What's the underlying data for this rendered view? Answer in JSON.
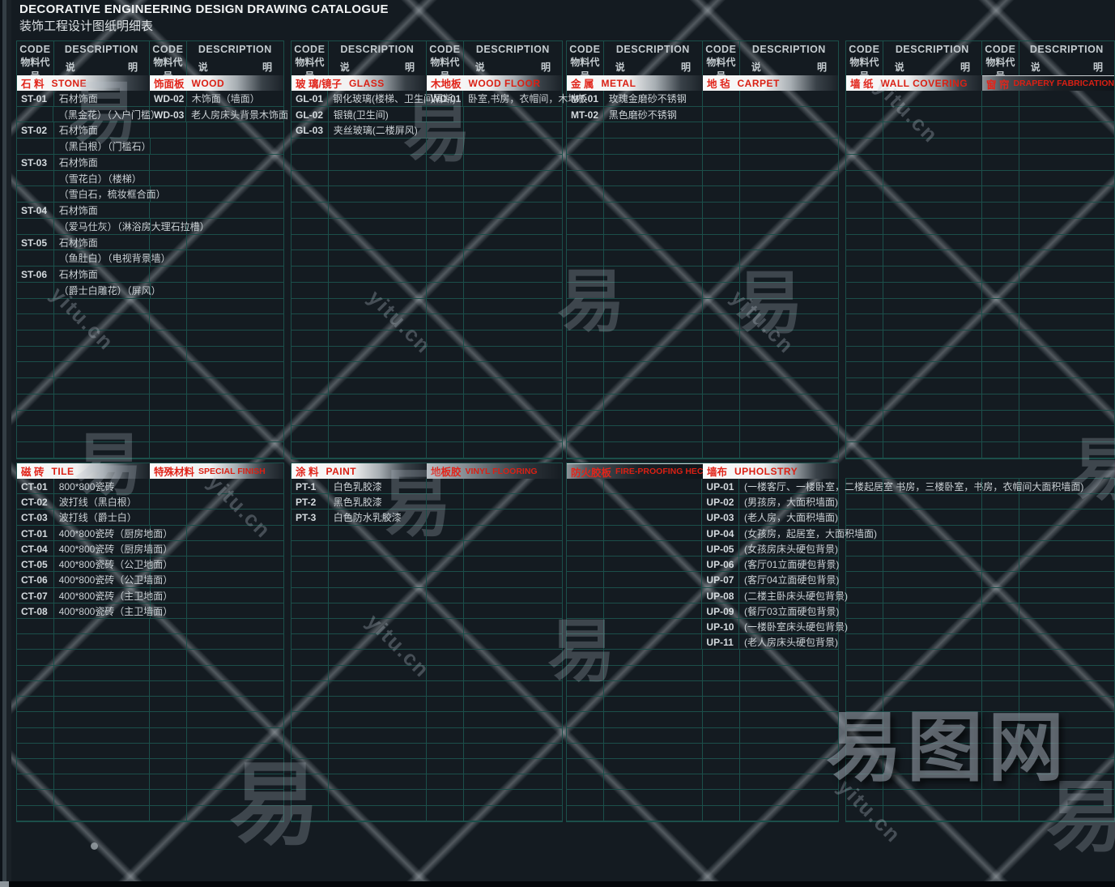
{
  "header": {
    "title_en": "DECORATIVE ENGINEERING DESIGN DRAWING CATALOGUE",
    "title_cn": "装饰工程设计图纸明细表"
  },
  "column_header": {
    "code_en": "CODE",
    "code_cn": "物料代号",
    "desc_en": "DESCRIPTION",
    "desc_cn_l": "说",
    "desc_cn_r": "明"
  },
  "watermark": {
    "glyph": "易",
    "url": "yitu.cn",
    "logo": "易图网",
    "dot": "·"
  },
  "sections": {
    "stone": {
      "cn": "石 料",
      "en": "STONE",
      "bar": "light",
      "rows": [
        [
          "ST-01",
          "石材饰面"
        ],
        [
          "",
          "（黑金花）（入户门槛）"
        ],
        [
          "ST-02",
          "石材饰面"
        ],
        [
          "",
          "（黑白根）（门槛石）"
        ],
        [
          "ST-03",
          "石材饰面"
        ],
        [
          "",
          "（雪花白）（楼梯）"
        ],
        [
          "",
          "（雪白石，梳妆框合面）"
        ],
        [
          "ST-04",
          "石材饰面"
        ],
        [
          "",
          "（爱马仕灰）（淋浴房大理石拉槽）"
        ],
        [
          "ST-05",
          "石材饰面"
        ],
        [
          "",
          "（鱼肚白）（电视背景墙）"
        ],
        [
          "ST-06",
          "石材饰面"
        ],
        [
          "",
          "（爵士白雕花）（屏风）"
        ]
      ]
    },
    "wood": {
      "cn": "饰面板",
      "en": "WOOD",
      "bar": "light",
      "rows": [
        [
          "WD-02",
          "木饰面（墙面）"
        ],
        [
          "WD-03",
          "老人房床头背景木饰面"
        ]
      ]
    },
    "glass": {
      "cn": "玻 璃/镜子",
      "en": "GLASS",
      "bar": "light",
      "rows": [
        [
          "GL-01",
          "钢化玻璃(楼梯、卫生间隔断)"
        ],
        [
          "GL-02",
          "银镜(卫生间)"
        ],
        [
          "GL-03",
          "夹丝玻璃(二楼屏风)"
        ]
      ]
    },
    "wood_floor": {
      "cn": "木地板",
      "en": "WOOD FLOOR",
      "bar": "light",
      "rows": [
        [
          "WD-01",
          "卧室,书房，衣帽间，木地板"
        ]
      ]
    },
    "metal": {
      "cn": "金 属",
      "en": "METAL",
      "bar": "light",
      "rows": [
        [
          "MT-01",
          "玫瑰金磨砂不锈钢"
        ],
        [
          "MT-02",
          "黑色磨砂不锈钢"
        ]
      ]
    },
    "carpet": {
      "cn": "地 毡",
      "en": "CARPET",
      "bar": "light",
      "rows": []
    },
    "wall_covering": {
      "cn": "墙 纸",
      "en": "WALL COVERING",
      "bar": "light",
      "rows": []
    },
    "drapery": {
      "cn": "窗 帘",
      "en": "DRAPERY FABRICATION",
      "bar": "dark",
      "rows": []
    },
    "tile": {
      "cn": "磁 砖",
      "en": "TILE",
      "bar": "light",
      "rows": [
        [
          "CT-01",
          "800*800瓷砖"
        ],
        [
          "CT-02",
          "波打线（黑白根）"
        ],
        [
          "CT-03",
          "波打线（爵士白）"
        ],
        [
          "CT-01",
          "400*800瓷砖（厨房地面）"
        ],
        [
          "CT-04",
          "400*800瓷砖（厨房墙面）"
        ],
        [
          "CT-05",
          "400*800瓷砖（公卫地面）"
        ],
        [
          "CT-06",
          "400*800瓷砖（公卫墙面）"
        ],
        [
          "CT-07",
          "400*800瓷砖（主卫地面）"
        ],
        [
          "CT-08",
          "400*800瓷砖（主卫墙面）"
        ]
      ]
    },
    "special_finish": {
      "cn": "特殊材料",
      "en": "SPECIAL FINISH",
      "bar": "light",
      "rows": []
    },
    "paint": {
      "cn": "涂 料",
      "en": "PAINT",
      "bar": "light",
      "rows": [
        [
          "PT-1",
          "白色乳胶漆"
        ],
        [
          "PT-2",
          "黑色乳胶漆"
        ],
        [
          "PT-3",
          "白色防水乳胶漆"
        ]
      ]
    },
    "vinyl": {
      "cn": "地板胶",
      "en": "VINYL FLOORING",
      "bar": "dim",
      "rows": []
    },
    "fireproof": {
      "cn": "防火胶板",
      "en": "FIRE-PROOFING HECTOGRAPH",
      "bar": "dark",
      "rows": []
    },
    "upholstery": {
      "cn": "墙布",
      "en": "UPHOLSTRY",
      "bar": "light",
      "rows": [
        [
          "UP-01",
          "(一楼客厅、一楼卧室，二楼起居室 书房，三楼卧室，书房，衣帽间大面积墙面)"
        ],
        [
          "UP-02",
          "(男孩房，大面积墙面)"
        ],
        [
          "UP-03",
          "(老人房，大面积墙面)"
        ],
        [
          "UP-04",
          "(女孩房，起居室，大面积墙面)"
        ],
        [
          "UP-05",
          "(女孩房床头硬包背景)"
        ],
        [
          "UP-06",
          "(客厅01立面硬包背景)"
        ],
        [
          "UP-07",
          "(客厅04立面硬包背景)"
        ],
        [
          "UP-08",
          "(二楼主卧床头硬包背景)"
        ],
        [
          "UP-09",
          "(餐厅03立面硬包背景)"
        ],
        [
          "UP-10",
          "(一楼卧室床头硬包背景)"
        ],
        [
          "UP-11",
          "(老人房床头硬包背景)"
        ]
      ]
    }
  }
}
